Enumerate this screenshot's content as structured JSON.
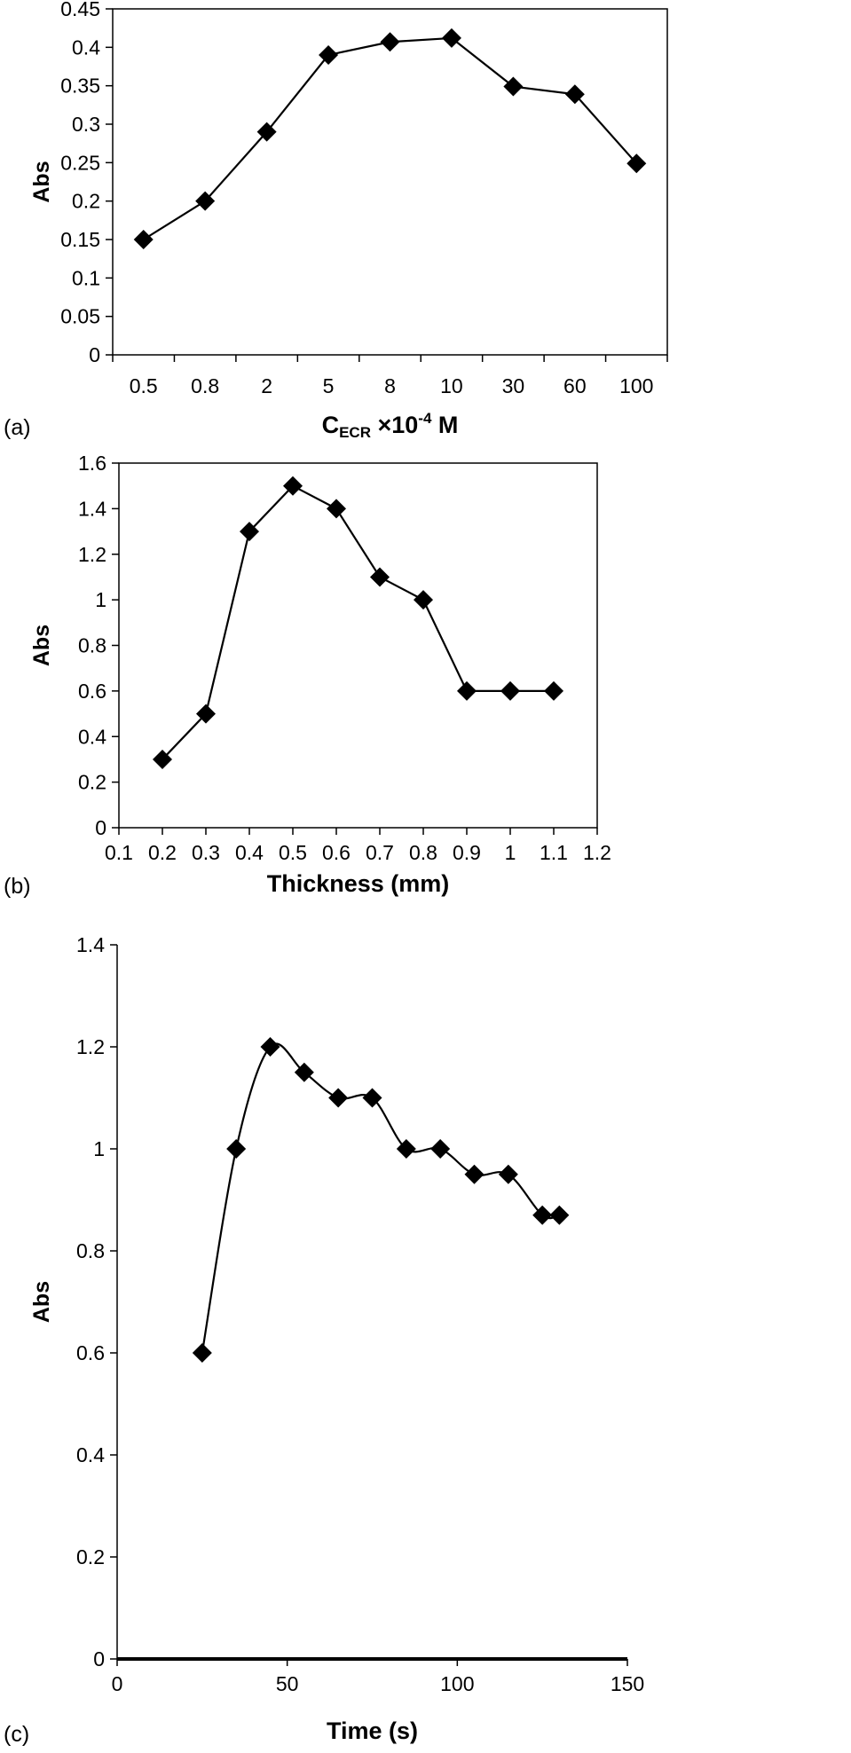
{
  "chart_data": [
    {
      "type": "line",
      "panel_label": "(a)",
      "x_is_categorical": true,
      "categories": [
        "0.5",
        "0.8",
        "2",
        "5",
        "8",
        "10",
        "30",
        "60",
        "100"
      ],
      "series": [
        {
          "values": [
            0.15,
            0.2,
            0.29,
            0.39,
            0.407,
            0.412,
            0.349,
            0.339,
            0.249
          ]
        }
      ],
      "xlabel": {
        "main": "C",
        "sub": "ECR",
        "mid": " ×10",
        "sup": "-4",
        "end": " M"
      },
      "ylabel": "Abs",
      "ylim": [
        0,
        0.45
      ],
      "yticks": [
        "0",
        "0.05",
        "0.1",
        "0.15",
        "0.2",
        "0.25",
        "0.3",
        "0.35",
        "0.4",
        "0.45"
      ],
      "marker": "diamond",
      "color": "#000000",
      "grid": false
    },
    {
      "type": "line",
      "panel_label": "(b)",
      "x": [
        0.2,
        0.3,
        0.4,
        0.5,
        0.6,
        0.7,
        0.8,
        0.9,
        1.0,
        1.1
      ],
      "series": [
        {
          "values": [
            0.3,
            0.5,
            1.3,
            1.5,
            1.4,
            1.1,
            1.0,
            0.6,
            0.6,
            0.6
          ]
        }
      ],
      "xlabel": "Thickness (mm)",
      "ylabel": "Abs",
      "xlim": [
        0.1,
        1.2
      ],
      "ylim": [
        0,
        1.6
      ],
      "xticks": [
        "0.1",
        "0.2",
        "0.3",
        "0.4",
        "0.5",
        "0.6",
        "0.7",
        "0.8",
        "0.9",
        "1",
        "1.1",
        "1.2"
      ],
      "yticks": [
        "0",
        "0.2",
        "0.4",
        "0.6",
        "0.8",
        "1",
        "1.2",
        "1.4",
        "1.6"
      ],
      "marker": "diamond",
      "color": "#000000",
      "grid": false
    },
    {
      "type": "line",
      "panel_label": "(c)",
      "smooth": true,
      "x": [
        25,
        35,
        45,
        55,
        65,
        75,
        85,
        95,
        105,
        115,
        125,
        130
      ],
      "series": [
        {
          "values": [
            0.6,
            1.0,
            1.2,
            1.15,
            1.1,
            1.1,
            1.0,
            1.0,
            0.95,
            0.95,
            0.87,
            0.87
          ]
        }
      ],
      "xlabel": "Time (s)",
      "ylabel": "Abs",
      "xlim": [
        0,
        150
      ],
      "ylim": [
        0,
        1.4
      ],
      "xticks": [
        "0",
        "50",
        "100",
        "150"
      ],
      "yticks": [
        "0",
        "0.2",
        "0.4",
        "0.6",
        "0.8",
        "1",
        "1.2",
        "1.4"
      ],
      "marker": "diamond",
      "color": "#000000",
      "grid": false
    }
  ]
}
